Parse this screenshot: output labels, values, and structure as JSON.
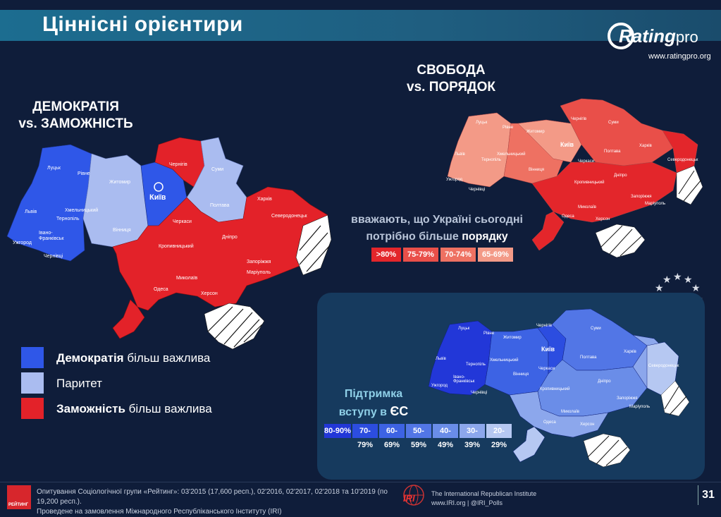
{
  "title": "Ціннісні орієнтири",
  "logo": {
    "brand_main": "Rating",
    "brand_suffix": "pro",
    "url": "www.ratingpro.org"
  },
  "map1": {
    "heading_line1": "ДЕМОКРАТІЯ",
    "heading_line2": "vs. ЗАМОЖНІСТЬ",
    "legend": [
      {
        "bold": "Демократія",
        "rest": " більш важлива",
        "color": "#2f57e8"
      },
      {
        "bold": "",
        "rest": "Паритет",
        "color": "#aabcf0"
      },
      {
        "bold": "Заможність",
        "rest": " більш важлива",
        "color": "#e32229"
      }
    ],
    "colors": {
      "democracy": "#2f57e8",
      "parity": "#aabcf0",
      "wealth": "#e32229"
    }
  },
  "map2": {
    "heading_line1": "СВОБОДА",
    "heading_line2": "vs. ПОРЯДОК",
    "caption_line1": "вважають, що Україні сьогодні",
    "caption_line2_pre": "потрібно більше ",
    "caption_line2_bold": "порядку",
    "scale": [
      {
        "label": ">80%",
        "color": "#e3262b"
      },
      {
        "label": "75-79%",
        "color": "#e94f49"
      },
      {
        "label": "70-74%",
        "color": "#ee7162"
      },
      {
        "label": "65-69%",
        "color": "#f39a87"
      }
    ]
  },
  "map3": {
    "caption_line1": "Підтримка",
    "caption_line2_pre": "вступу в ",
    "caption_line2_bold": "ЄС",
    "scale": [
      {
        "label": "80-90%",
        "color": "#2237d8"
      },
      {
        "label": "70-79%",
        "color": "#2c4de0"
      },
      {
        "label": "60-69%",
        "color": "#3d63e4"
      },
      {
        "label": "50-59%",
        "color": "#5276e6"
      },
      {
        "label": "40-49%",
        "color": "#6a8de8"
      },
      {
        "label": "30-39%",
        "color": "#8ca7ec"
      },
      {
        "label": "20-29%",
        "color": "#b6c8f2"
      }
    ]
  },
  "cities": {
    "kyiv": "Київ",
    "lutsk": "Луцьк",
    "rivne": "Рівне",
    "lviv": "Львів",
    "ternopil": "Тернопіль",
    "ivano": "Івано-",
    "frankivsk": "Франківськ",
    "uzhhorod": "Ужгород",
    "chernivtsi": "Чернівці",
    "khmelnytskyi": "Хмельницький",
    "vinnytsia": "Вінниця",
    "zhytomyr": "Житомир",
    "chernihiv": "Чернігів",
    "sumy": "Суми",
    "poltava": "Полтава",
    "kharkiv": "Харків",
    "cherkasy": "Черкаси",
    "kropyvnytskyi": "Кропивницький",
    "dnipro": "Дніпро",
    "zaporizhzhia": "Запоріжжя",
    "sievierodonetsk": "Северодонецьк",
    "mariupol": "Маріуполь",
    "mykolaiv": "Миколаїв",
    "odesa": "Одеса",
    "kherson": "Херсон"
  },
  "footer": {
    "line1": "Опитування Соціологічної групи «Рейтинг»: 03'2015 (17,600 респ.), 02'2016, 02'2017, 02'2018 та 10'2019 (по 19,200 респ.).",
    "line2": "Проведене на замовлення Міжнародного Республіканського Інституту (IRI)",
    "rating_label": "РЕЙТИНГ",
    "iri_mark": "IRI",
    "iri_line1": "The International Republican Institute",
    "iri_line2": "www.IRI.org | @IRI_Polls",
    "page_number": "31"
  }
}
